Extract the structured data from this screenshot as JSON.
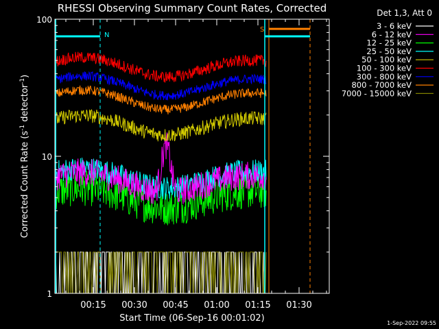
{
  "chart_data": {
    "type": "line",
    "title": "RHESSI Observing Summary Count Rates, Corrected",
    "xlabel": "Start Time (06-Sep-16 00:01:02)",
    "ylabel": "Corrected Count Rate (s",
    "ylabel_sup1": "-1",
    "ylabel_mid": " detector",
    "ylabel_sup2": "-1",
    "ylabel_end": ")",
    "yscale": "log",
    "ylim": [
      1,
      100
    ],
    "xlim_min": [
      1,
      101
    ],
    "yticks": [
      {
        "v": 1,
        "label": "1"
      },
      {
        "v": 10,
        "label": "10"
      },
      {
        "v": 100,
        "label": "100"
      }
    ],
    "xticks": [
      {
        "min": 15,
        "label": "00:15"
      },
      {
        "min": 30,
        "label": "00:30"
      },
      {
        "min": 45,
        "label": "00:45"
      },
      {
        "min": 60,
        "label": "01:00"
      },
      {
        "min": 75,
        "label": "01:15"
      },
      {
        "min": 90,
        "label": "01:30"
      }
    ],
    "legend_title": "Det 1,3, Att 0",
    "legend_placement": "right",
    "series": [
      {
        "name": "3 - 6 keV",
        "color": "#ffffff",
        "base": 1.6,
        "noise": 0.35,
        "style": "binary"
      },
      {
        "name": "6 - 12 keV",
        "color": "#ff00ff",
        "base": 6.5,
        "noise": 0.12,
        "style": "noisy"
      },
      {
        "name": "12 - 25 keV",
        "color": "#00ff00",
        "base": 5.0,
        "noise": 0.15,
        "style": "noisy"
      },
      {
        "name": "25 - 50 keV",
        "color": "#00ffff",
        "base": 7.0,
        "noise": 0.1,
        "style": "noisy"
      },
      {
        "name": "50 - 100 keV",
        "color": "#d4cc00",
        "base": 17,
        "noise": 0.06,
        "style": "noisy"
      },
      {
        "name": "100 - 300 keV",
        "color": "#ff0000",
        "base": 45,
        "noise": 0.05,
        "style": "noisy"
      },
      {
        "name": "300 - 800 keV",
        "color": "#0000ff",
        "base": 33,
        "noise": 0.04,
        "style": "noisy"
      },
      {
        "name": "800 - 7000 keV",
        "color": "#ff8000",
        "base": 26,
        "noise": 0.04,
        "style": "noisy"
      },
      {
        "name": "7000 - 15000 keV",
        "color": "#808000",
        "base": 1.5,
        "noise": 0.2,
        "style": "binary"
      }
    ],
    "markers": [
      {
        "label": "N",
        "color": "#00ffff"
      },
      {
        "label": "S",
        "color": "#ff8000"
      }
    ]
  },
  "timestamp": "1-Sep-2022 09:55"
}
